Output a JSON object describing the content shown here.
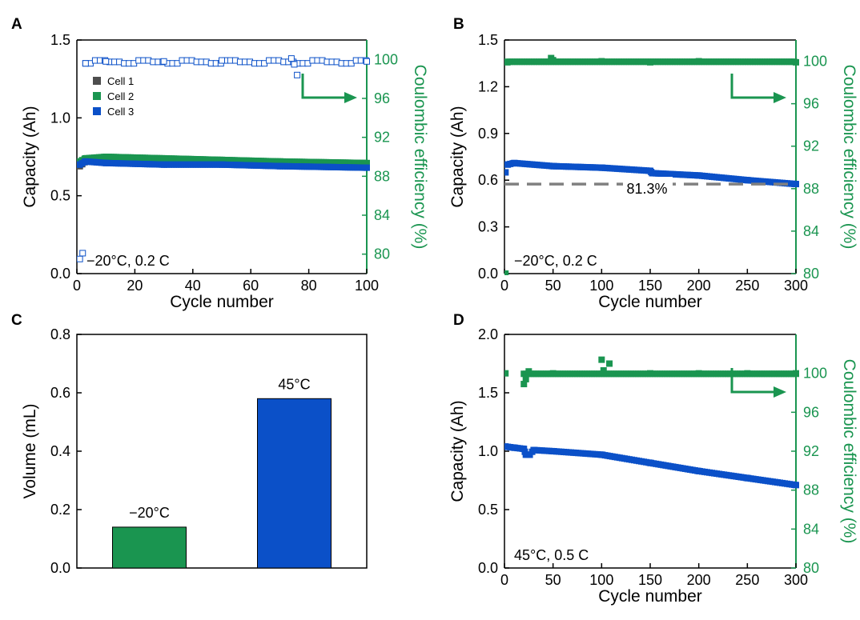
{
  "colors": {
    "axis": "#000000",
    "green": "#1a9550",
    "blue": "#0b50c8",
    "grey": "#4d4d4d",
    "dash": "#808080"
  },
  "chart_data": [
    {
      "panel": "A",
      "type": "scatter",
      "xlabel": "Cycle number",
      "ylabel": "Capacity (Ah)",
      "y2label": "Coulombic efficiency (%)",
      "xlim": [
        0,
        100
      ],
      "ylim": [
        0,
        1.5
      ],
      "y2lim": [
        78,
        102
      ],
      "xticks": [
        "0",
        "20",
        "40",
        "60",
        "80",
        "100"
      ],
      "yticks": [
        "0.0",
        "0.5",
        "1.0",
        "1.5"
      ],
      "y2ticks": [
        "80",
        "84",
        "88",
        "92",
        "96",
        "100"
      ],
      "xtick_values": [
        0,
        20,
        40,
        60,
        80,
        100
      ],
      "ytick_values": [
        0,
        0.5,
        1.0,
        1.5
      ],
      "y2tick_values": [
        80,
        84,
        88,
        92,
        96,
        100
      ],
      "legend": [
        "Cell 1",
        "Cell 2",
        "Cell 3"
      ],
      "annotation": "−20°C, 0.2 C",
      "capacity_series": [
        {
          "name": "Cell 1",
          "color": "grey",
          "x": [
            1,
            3,
            10,
            30,
            50,
            70,
            100
          ],
          "y": [
            0.69,
            0.72,
            0.73,
            0.72,
            0.71,
            0.7,
            0.69
          ]
        },
        {
          "name": "Cell 2",
          "color": "green",
          "x": [
            1,
            3,
            10,
            30,
            50,
            70,
            100
          ],
          "y": [
            0.72,
            0.74,
            0.75,
            0.74,
            0.73,
            0.72,
            0.71
          ]
        },
        {
          "name": "Cell 3",
          "color": "blue",
          "x": [
            1,
            3,
            10,
            30,
            50,
            70,
            100
          ],
          "y": [
            0.7,
            0.72,
            0.71,
            0.7,
            0.7,
            0.69,
            0.68
          ]
        }
      ],
      "ce_series": {
        "name": "Coulombic efficiency",
        "open_markers": true,
        "x": [
          1,
          2,
          3,
          10,
          30,
          50,
          74,
          75,
          76,
          100
        ],
        "y": [
          79.5,
          80.1,
          99.6,
          99.8,
          99.8,
          99.9,
          100.1,
          99.5,
          98.4,
          99.8
        ]
      }
    },
    {
      "panel": "B",
      "type": "scatter",
      "xlabel": "Cycle number",
      "ylabel": "Capacity (Ah)",
      "y2label": "Coulombic efficiency (%)",
      "xlim": [
        0,
        300
      ],
      "ylim": [
        0,
        1.5
      ],
      "y2lim": [
        80,
        102
      ],
      "xticks": [
        "0",
        "50",
        "100",
        "150",
        "200",
        "250",
        "300"
      ],
      "yticks": [
        "0.0",
        "0.3",
        "0.6",
        "0.9",
        "1.2",
        "1.5"
      ],
      "y2ticks": [
        "80",
        "84",
        "88",
        "92",
        "96",
        "100"
      ],
      "xtick_values": [
        0,
        50,
        100,
        150,
        200,
        250,
        300
      ],
      "ytick_values": [
        0,
        0.3,
        0.6,
        0.9,
        1.2,
        1.5
      ],
      "y2tick_values": [
        80,
        84,
        88,
        92,
        96,
        100
      ],
      "annotation": "−20°C, 0.2 C",
      "retention_label": "81.3%",
      "retention_line_y": 0.575,
      "capacity_series": [
        {
          "name": "Capacity",
          "color": "blue",
          "x": [
            1,
            3,
            10,
            50,
            100,
            150,
            152,
            200,
            250,
            300
          ],
          "y": [
            0.65,
            0.7,
            0.71,
            0.69,
            0.68,
            0.66,
            0.645,
            0.63,
            0.6,
            0.575
          ]
        }
      ],
      "ce_series": {
        "name": "Coulombic efficiency",
        "open_markers": false,
        "x": [
          1,
          3,
          48,
          50,
          100,
          150,
          200,
          300
        ],
        "y": [
          80,
          99.9,
          100.3,
          100.1,
          100,
          99.9,
          100,
          99.9
        ]
      }
    },
    {
      "panel": "C",
      "type": "bar",
      "ylabel": "Volume (mL)",
      "ylim": [
        0,
        0.8
      ],
      "yticks": [
        "0.0",
        "0.2",
        "0.4",
        "0.6",
        "0.8"
      ],
      "ytick_values": [
        0,
        0.2,
        0.4,
        0.6,
        0.8
      ],
      "categories": [
        "−20°C",
        "45°C"
      ],
      "values": [
        0.14,
        0.58
      ],
      "bar_colors": [
        "green",
        "blue"
      ]
    },
    {
      "panel": "D",
      "type": "scatter",
      "xlabel": "Cycle number",
      "ylabel": "Capacity (Ah)",
      "y2label": "Coulombic efficiency (%)",
      "xlim": [
        0,
        300
      ],
      "ylim": [
        0,
        2.0
      ],
      "y2lim": [
        80,
        104
      ],
      "xticks": [
        "0",
        "50",
        "100",
        "150",
        "200",
        "250",
        "300"
      ],
      "yticks": [
        "0.0",
        "0.5",
        "1.0",
        "1.5",
        "2.0"
      ],
      "y2ticks": [
        "80",
        "84",
        "88",
        "92",
        "96",
        "100"
      ],
      "xtick_values": [
        0,
        50,
        100,
        150,
        200,
        250,
        300
      ],
      "ytick_values": [
        0,
        0.5,
        1.0,
        1.5,
        2.0
      ],
      "y2tick_values": [
        80,
        84,
        88,
        92,
        96,
        100
      ],
      "annotation": "45°C, 0.5 C",
      "capacity_series": [
        {
          "name": "Capacity",
          "color": "blue",
          "x": [
            1,
            10,
            20,
            22,
            26,
            30,
            50,
            100,
            150,
            200,
            250,
            300
          ],
          "y": [
            1.04,
            1.03,
            1.02,
            0.97,
            0.97,
            1.01,
            1.0,
            0.97,
            0.9,
            0.83,
            0.77,
            0.71
          ]
        }
      ],
      "ce_series": {
        "name": "Coulombic efficiency",
        "open_markers": false,
        "x": [
          1,
          20,
          22,
          25,
          50,
          100,
          102,
          108,
          150,
          200,
          250,
          300
        ],
        "y": [
          100,
          98.9,
          99.4,
          100.2,
          100,
          101.4,
          100.3,
          101,
          100,
          100,
          100,
          100
        ]
      }
    }
  ]
}
